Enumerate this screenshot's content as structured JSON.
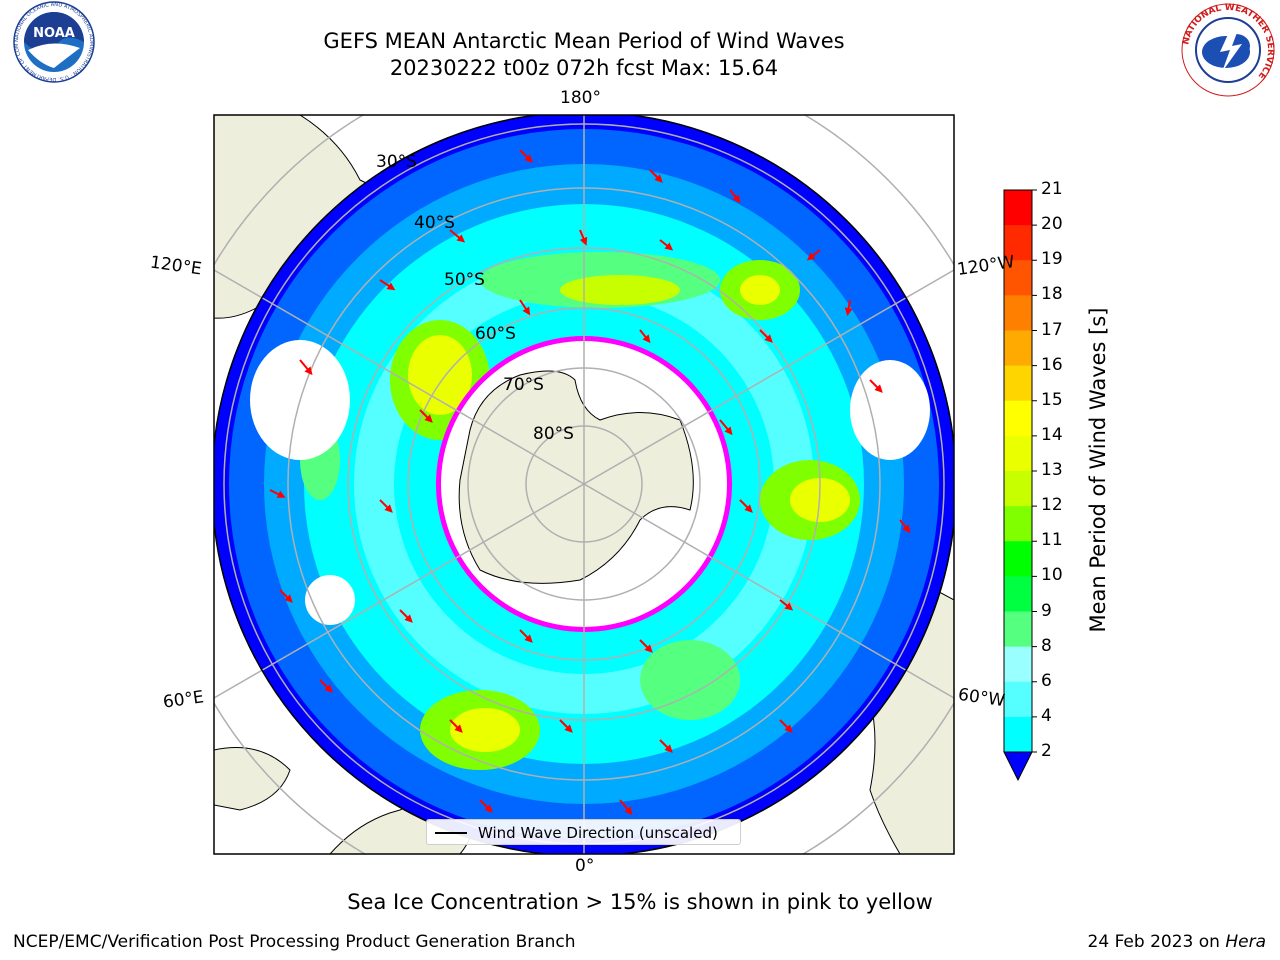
{
  "title": {
    "line1": "GEFS MEAN Antarctic Mean Period of Wind Waves",
    "line2": "20230222 t00z 072h fcst   Max: 15.64"
  },
  "logos": {
    "left": {
      "name": "NOAA",
      "text": "NOAA",
      "ring_text": "NATIONAL OCEANIC AND ATMOSPHERIC ADMINISTRATION · U.S. DEPARTMENT OF COMMERCE"
    },
    "right": {
      "name": "National Weather Service",
      "ring_text": "NATIONAL WEATHER SERVICE"
    }
  },
  "map": {
    "projection": "south polar stereographic",
    "longitude_labels": {
      "top": "180°",
      "bottom": "0°",
      "left_upper": "120°E",
      "left_lower": "60°E",
      "right_upper": "120°W",
      "right_lower": "60°W"
    },
    "latitude_labels": [
      "30°S",
      "40°S",
      "50°S",
      "60°S",
      "70°S",
      "80°S"
    ],
    "colors": {
      "land": "#eeeedd",
      "ocean_low": "#0000ff",
      "ice_edge": "#ff00ff",
      "arrow": "#ff0000"
    }
  },
  "legend": {
    "label": "Wind Wave Direction (unscaled)"
  },
  "colorbar": {
    "title": "Mean Period of Wind Waves [s]",
    "ticks": [
      "21",
      "20",
      "19",
      "18",
      "17",
      "16",
      "15",
      "14",
      "13",
      "12",
      "11",
      "10",
      "9",
      "8",
      "6",
      "4",
      "2"
    ],
    "colors": [
      "#ff0000",
      "#ff2a00",
      "#ff5500",
      "#ff8000",
      "#ffaa00",
      "#ffd500",
      "#ffff00",
      "#eaff00",
      "#c8ff00",
      "#80ff00",
      "#00ff00",
      "#00ff40",
      "#55ff80",
      "#99ffff",
      "#55ffff",
      "#00ffff",
      "#00aaff",
      "#0066ff"
    ],
    "extend_color": "#0000ff"
  },
  "ice_note": "Sea Ice Concentration > 15% is shown in pink to yellow",
  "footer": {
    "left": "NCEP/EMC/Verification Post Processing Product Generation Branch",
    "right_date": "24 Feb 2023 on ",
    "right_machine": "Hera"
  }
}
